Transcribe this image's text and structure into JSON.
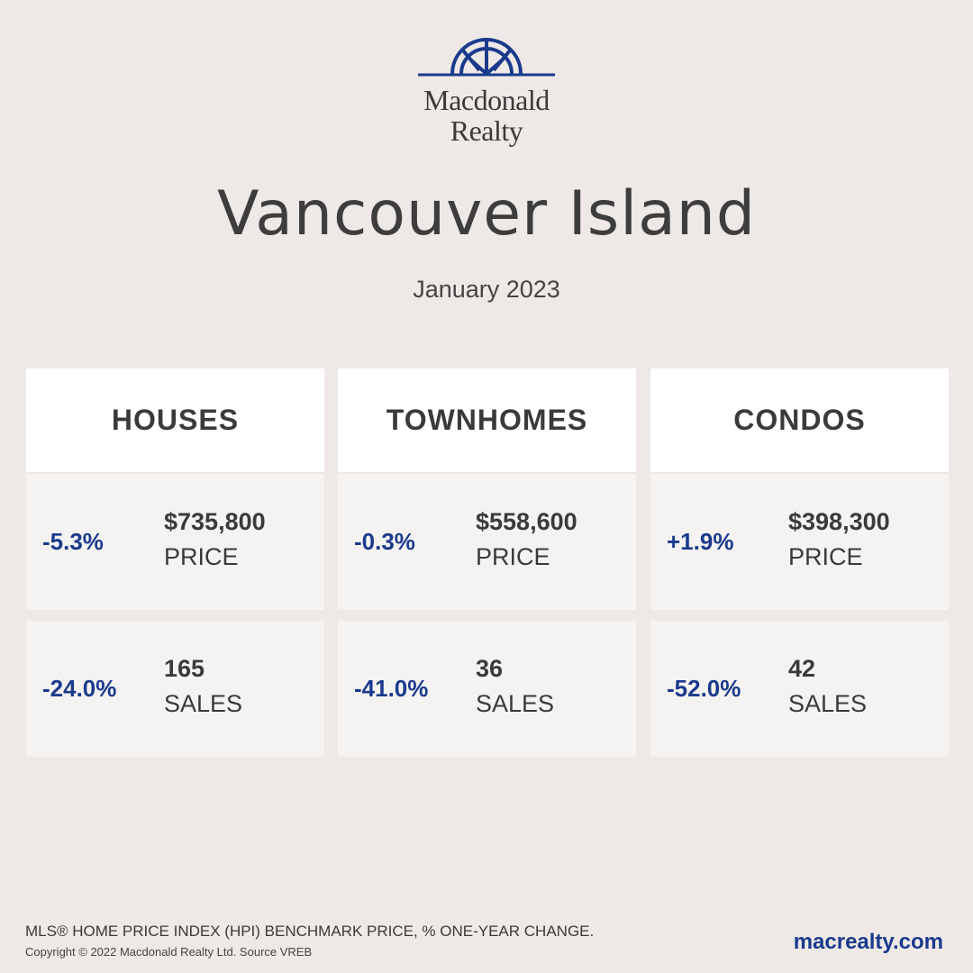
{
  "brand": {
    "logo_line1": "Macdonald",
    "logo_line2": "Realty",
    "accent_color": "#1A3A8C"
  },
  "title": "Vancouver Island",
  "subtitle": "January 2023",
  "columns": [
    {
      "header": "HOUSES",
      "price": {
        "change": "-5.3%",
        "value": "$735,800",
        "label": "PRICE"
      },
      "sales": {
        "change": "-24.0%",
        "value": "165",
        "label": "SALES"
      }
    },
    {
      "header": "TOWNHOMES",
      "price": {
        "change": "-0.3%",
        "value": "$558,600",
        "label": "PRICE"
      },
      "sales": {
        "change": "-41.0%",
        "value": "36",
        "label": "SALES"
      }
    },
    {
      "header": "CONDOS",
      "price": {
        "change": "+1.9%",
        "value": "$398,300",
        "label": "PRICE"
      },
      "sales": {
        "change": "-52.0%",
        "value": "42",
        "label": "SALES"
      }
    }
  ],
  "footer": {
    "note": "MLS® HOME PRICE INDEX (HPI) BENCHMARK PRICE, % ONE-YEAR CHANGE.",
    "copyright": "Copyright © 2022 Macdonald Realty Ltd. Source VREB",
    "website": "macrealty.com"
  }
}
